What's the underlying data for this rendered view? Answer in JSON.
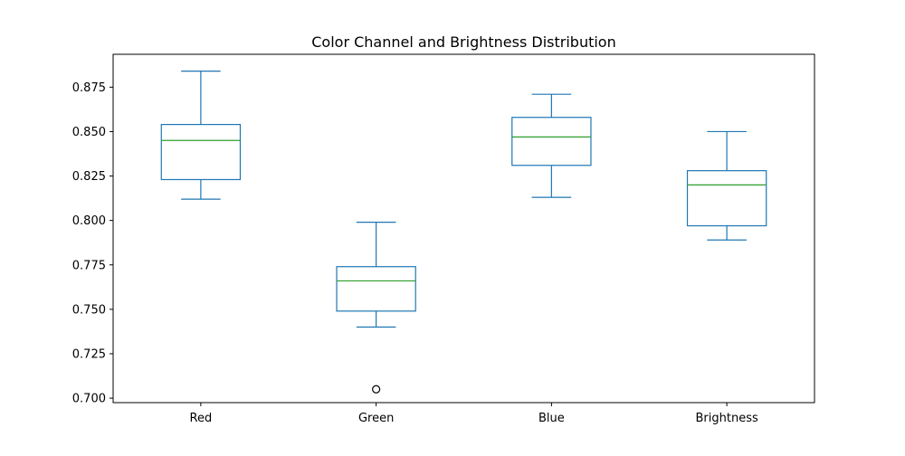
{
  "chart_data": {
    "type": "box",
    "title": "Color Channel and Brightness Distribution",
    "xlabel": "",
    "ylabel": "",
    "ylim": [
      0.6975,
      0.8935
    ],
    "yticks": [
      0.7,
      0.725,
      0.75,
      0.775,
      0.8,
      0.825,
      0.85,
      0.875
    ],
    "ytick_labels": [
      "0.700",
      "0.725",
      "0.750",
      "0.775",
      "0.800",
      "0.825",
      "0.850",
      "0.875"
    ],
    "categories": [
      "Red",
      "Green",
      "Blue",
      "Brightness"
    ],
    "boxes": [
      {
        "category": "Red",
        "whisker_low": 0.812,
        "q1": 0.823,
        "median": 0.845,
        "q3": 0.854,
        "whisker_high": 0.884,
        "outliers": []
      },
      {
        "category": "Green",
        "whisker_low": 0.74,
        "q1": 0.749,
        "median": 0.766,
        "q3": 0.774,
        "whisker_high": 0.799,
        "outliers": [
          0.705
        ]
      },
      {
        "category": "Blue",
        "whisker_low": 0.813,
        "q1": 0.831,
        "median": 0.847,
        "q3": 0.858,
        "whisker_high": 0.871,
        "outliers": []
      },
      {
        "category": "Brightness",
        "whisker_low": 0.789,
        "q1": 0.797,
        "median": 0.82,
        "q3": 0.828,
        "whisker_high": 0.85,
        "outliers": []
      }
    ],
    "grid": false,
    "colors": {
      "box": "#1f77b4",
      "median": "#2ca02c",
      "outlier": "#000000",
      "axis": "#000000"
    }
  }
}
